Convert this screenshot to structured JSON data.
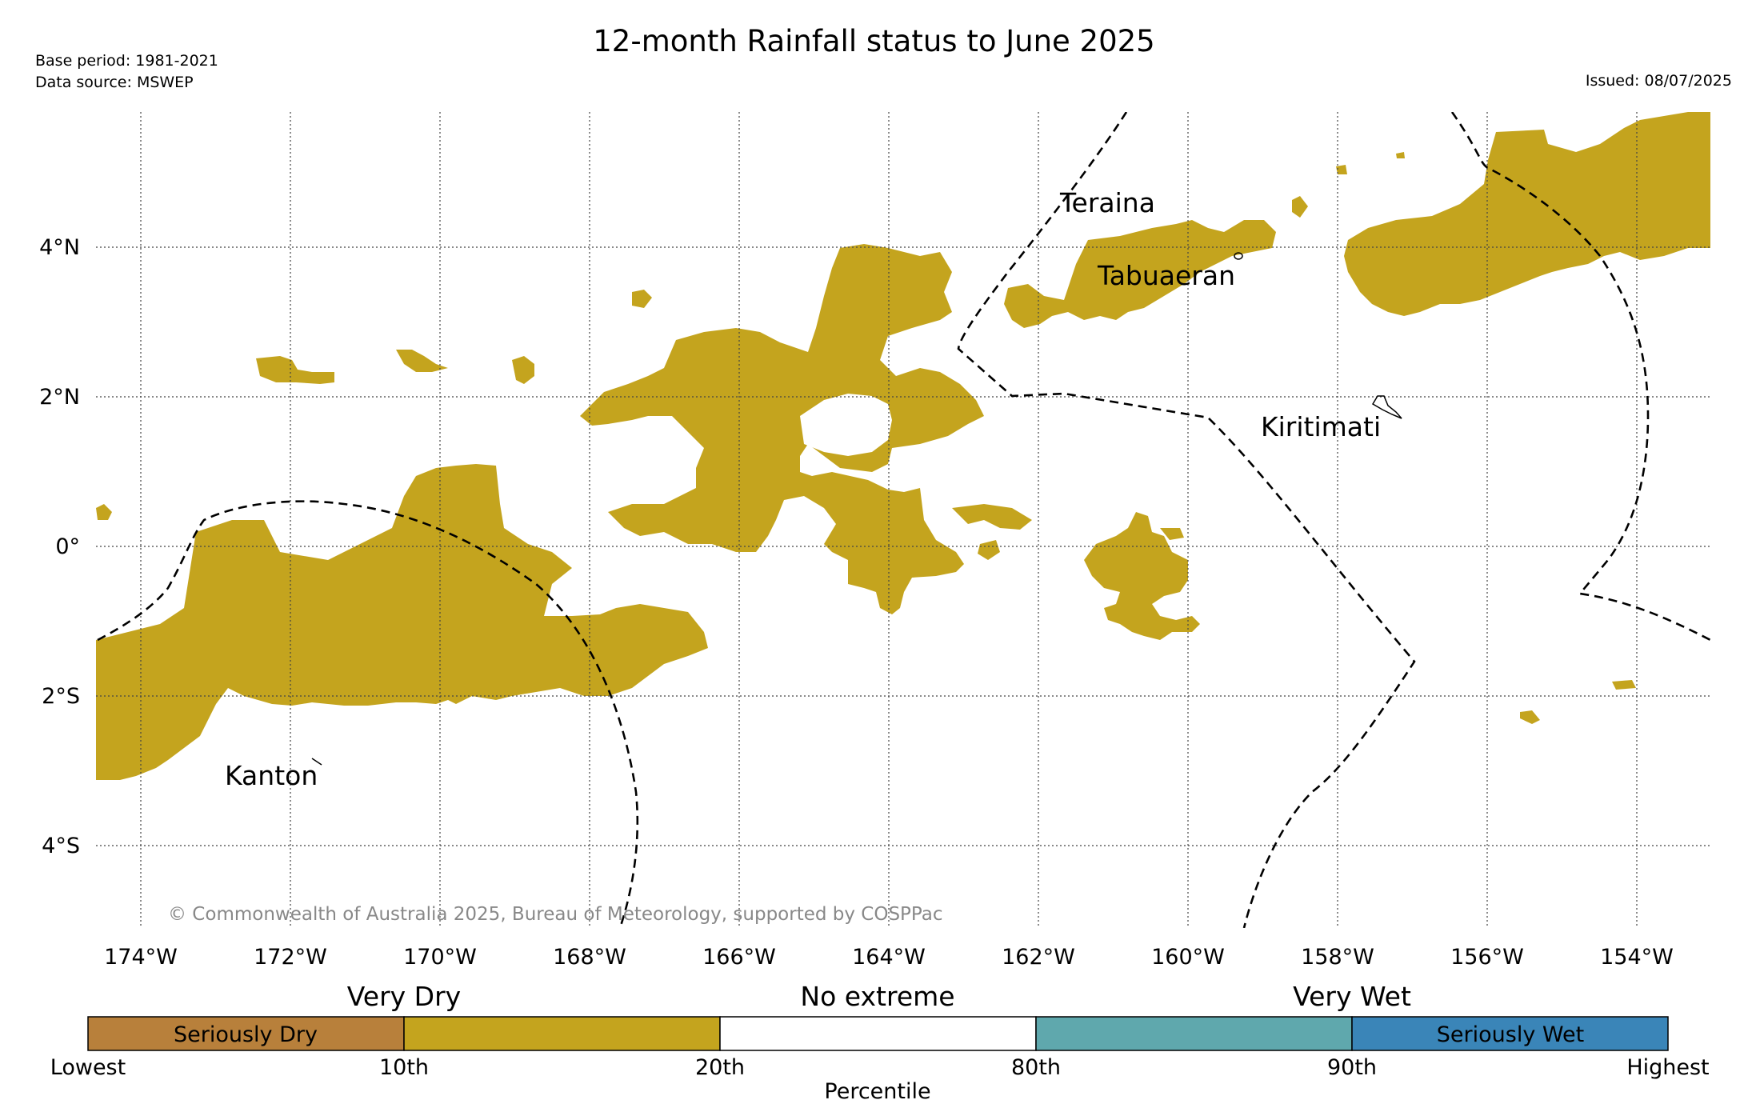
{
  "title": "12-month Rainfall status to June 2025",
  "base_period": "Base period: 1981-2021",
  "data_source": "Data source: MSWEP",
  "issued": "Issued: 08/07/2025",
  "copyright": "© Commonwealth of Australia 2025, Bureau of Meteorology, supported by COSPPac",
  "axes": {
    "lon_ticks": [
      "174°W",
      "172°W",
      "170°W",
      "168°W",
      "166°W",
      "164°W",
      "162°W",
      "160°W",
      "158°W",
      "156°W",
      "154°W"
    ],
    "lat_ticks": [
      "4°N",
      "2°N",
      "0°",
      "2°S",
      "4°S"
    ]
  },
  "places": [
    "Teraina",
    "Tabuaeran",
    "Kiritimati",
    "Kanton"
  ],
  "legend": {
    "group_labels": [
      "Very Dry",
      "No extreme",
      "Very Wet"
    ],
    "segments": [
      {
        "label": "Seriously Dry",
        "color": "#b8803b"
      },
      {
        "label": "",
        "color": "#c4a41e"
      },
      {
        "label": "",
        "color": "#ffffff"
      },
      {
        "label": "",
        "color": "#5fa8ad"
      },
      {
        "label": "Seriously Wet",
        "color": "#3a85b8"
      }
    ],
    "percentile_ticks": [
      "Lowest",
      "10th",
      "20th",
      "80th",
      "90th",
      "Highest"
    ],
    "axis_label": "Percentile"
  },
  "colors": {
    "very_dry": "#c4a41e",
    "seriously_dry": "#b8803b",
    "very_wet": "#5fa8ad",
    "seriously_wet": "#3a85b8"
  }
}
